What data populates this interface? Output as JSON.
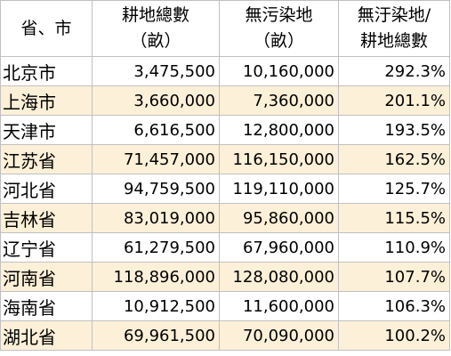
{
  "header": {
    "col1": "省、市",
    "col2_line1": "耕地總數",
    "col2_line2": "（畝）",
    "col3_line1": "無污染地",
    "col3_line2": "（畝）",
    "col4_line1": "無汙染地/",
    "col4_line2": "耕地總數"
  },
  "rows": [
    {
      "name": "北京市",
      "arable": "3,475,500",
      "clean": "10,160,000",
      "ratio": "292.3%"
    },
    {
      "name": "上海市",
      "arable": "3,660,000",
      "clean": "7,360,000",
      "ratio": "201.1%"
    },
    {
      "name": "天津市",
      "arable": "6,616,500",
      "clean": "12,800,000",
      "ratio": "193.5%"
    },
    {
      "name": "江苏省",
      "arable": "71,457,000",
      "clean": "116,150,000",
      "ratio": "162.5%"
    },
    {
      "name": "河北省",
      "arable": "94,759,500",
      "clean": "119,110,000",
      "ratio": "125.7%"
    },
    {
      "name": "吉林省",
      "arable": "83,019,000",
      "clean": "95,860,000",
      "ratio": "115.5%"
    },
    {
      "name": "辽宁省",
      "arable": "61,279,500",
      "clean": "67,960,000",
      "ratio": "110.9%"
    },
    {
      "name": "河南省",
      "arable": "118,896,000",
      "clean": "128,080,000",
      "ratio": "107.7%"
    },
    {
      "name": "海南省",
      "arable": "10,912,500",
      "clean": "11,600,000",
      "ratio": "106.3%"
    },
    {
      "name": "湖北省",
      "arable": "69,961,500",
      "clean": "70,090,000",
      "ratio": "100.2%"
    }
  ],
  "colors": {
    "alt_row": "#fdf0d8",
    "grid": "#c0c0c0"
  }
}
